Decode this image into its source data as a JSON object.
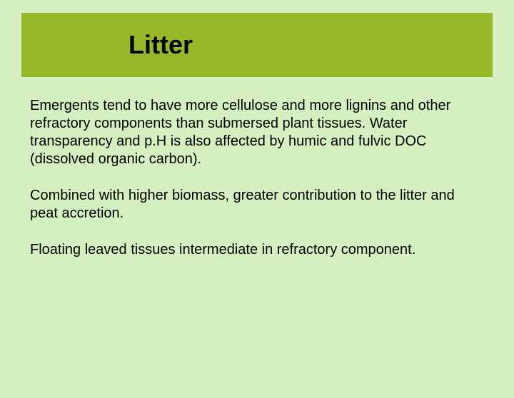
{
  "slide": {
    "background_color": "#d5f0c0",
    "title_bar": {
      "background_color": "#97b929",
      "title": "Litter",
      "title_fontsize": 36,
      "title_fontweight": "bold",
      "title_color": "#000000"
    },
    "body": {
      "text_color": "#000000",
      "fontsize": 20,
      "paragraphs": [
        "Emergents tend to have more cellulose and more lignins and other refractory components than submersed plant tissues.  Water transparency and p.H is also affected by humic and fulvic DOC (dissolved organic carbon).",
        "Combined with higher biomass, greater contribution to the litter and peat accretion.",
        "Floating leaved tissues intermediate in refractory component."
      ]
    }
  }
}
